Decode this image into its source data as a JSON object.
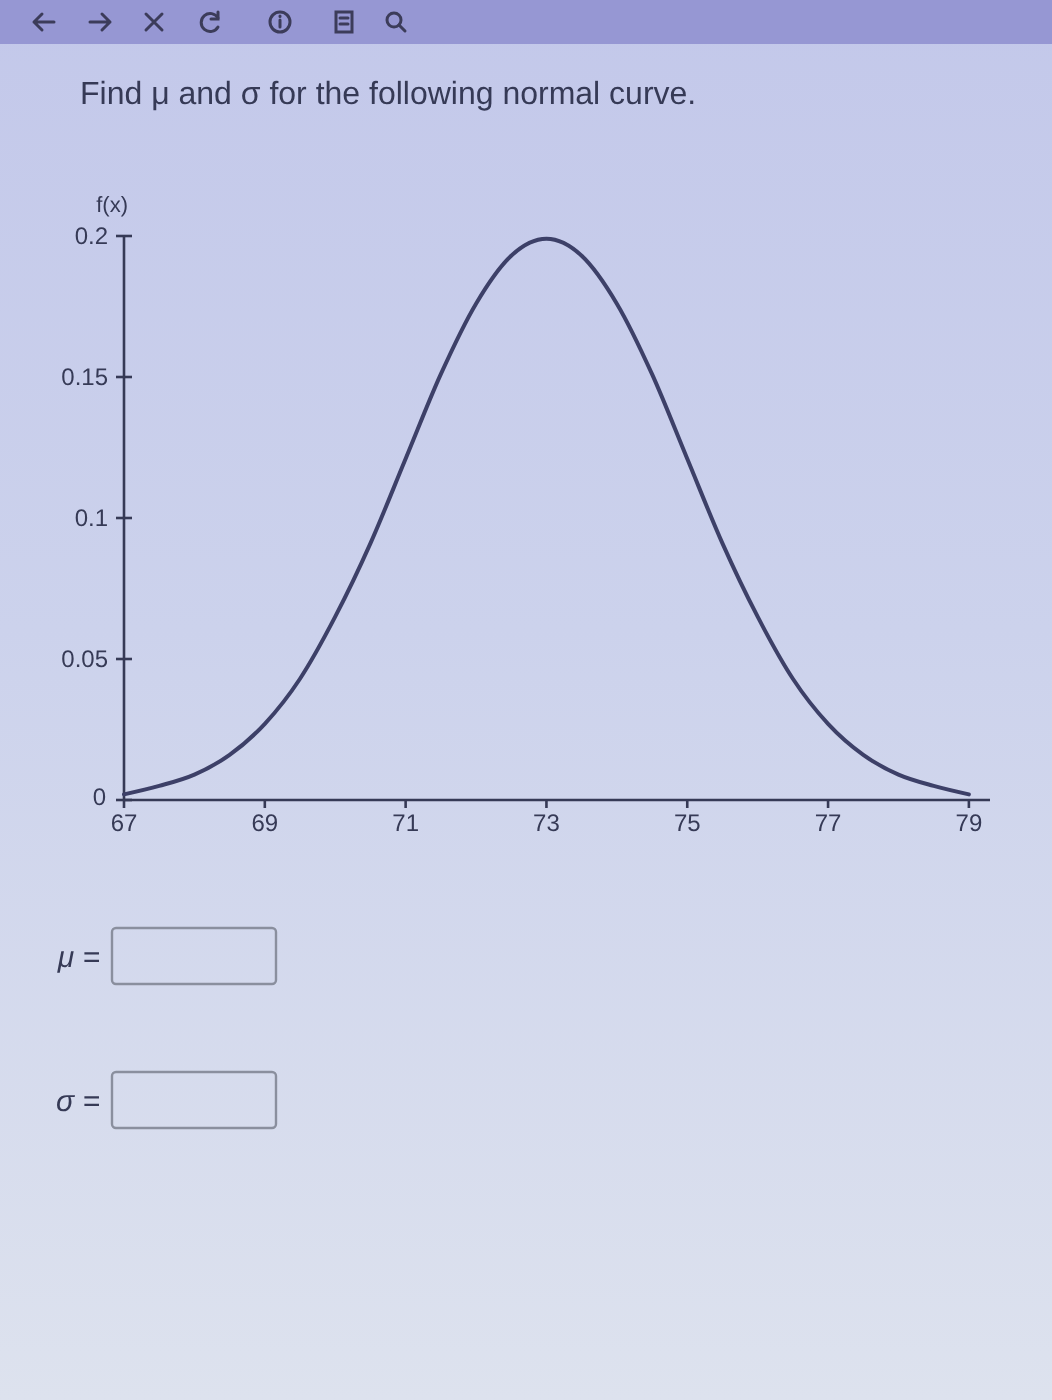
{
  "chart_data": {
    "type": "line",
    "title": "Find μ and σ for the following normal curve.",
    "ylabel": "f(x)",
    "x": [
      67,
      67.5,
      68,
      68.5,
      69,
      69.5,
      70,
      70.5,
      71,
      71.5,
      72,
      72.5,
      73,
      73.5,
      74,
      74.5,
      75,
      75.5,
      76,
      76.5,
      77,
      77.5,
      78,
      78.5,
      79
    ],
    "series": [
      {
        "color": "#3d4068",
        "values": [
          0.002,
          0.005,
          0.009,
          0.016,
          0.027,
          0.043,
          0.065,
          0.091,
          0.121,
          0.151,
          0.176,
          0.193,
          0.199,
          0.193,
          0.176,
          0.151,
          0.121,
          0.091,
          0.065,
          0.043,
          0.027,
          0.016,
          0.009,
          0.005,
          0.002
        ]
      }
    ],
    "xlim": [
      67,
      79.3
    ],
    "ylim": [
      0,
      0.2
    ],
    "xticks": [
      67,
      69,
      71,
      73,
      75,
      77,
      79
    ],
    "yticks": [
      0,
      0.05,
      0.1,
      0.15,
      0.2
    ],
    "annotations": [
      "μ =",
      "σ ="
    ]
  }
}
